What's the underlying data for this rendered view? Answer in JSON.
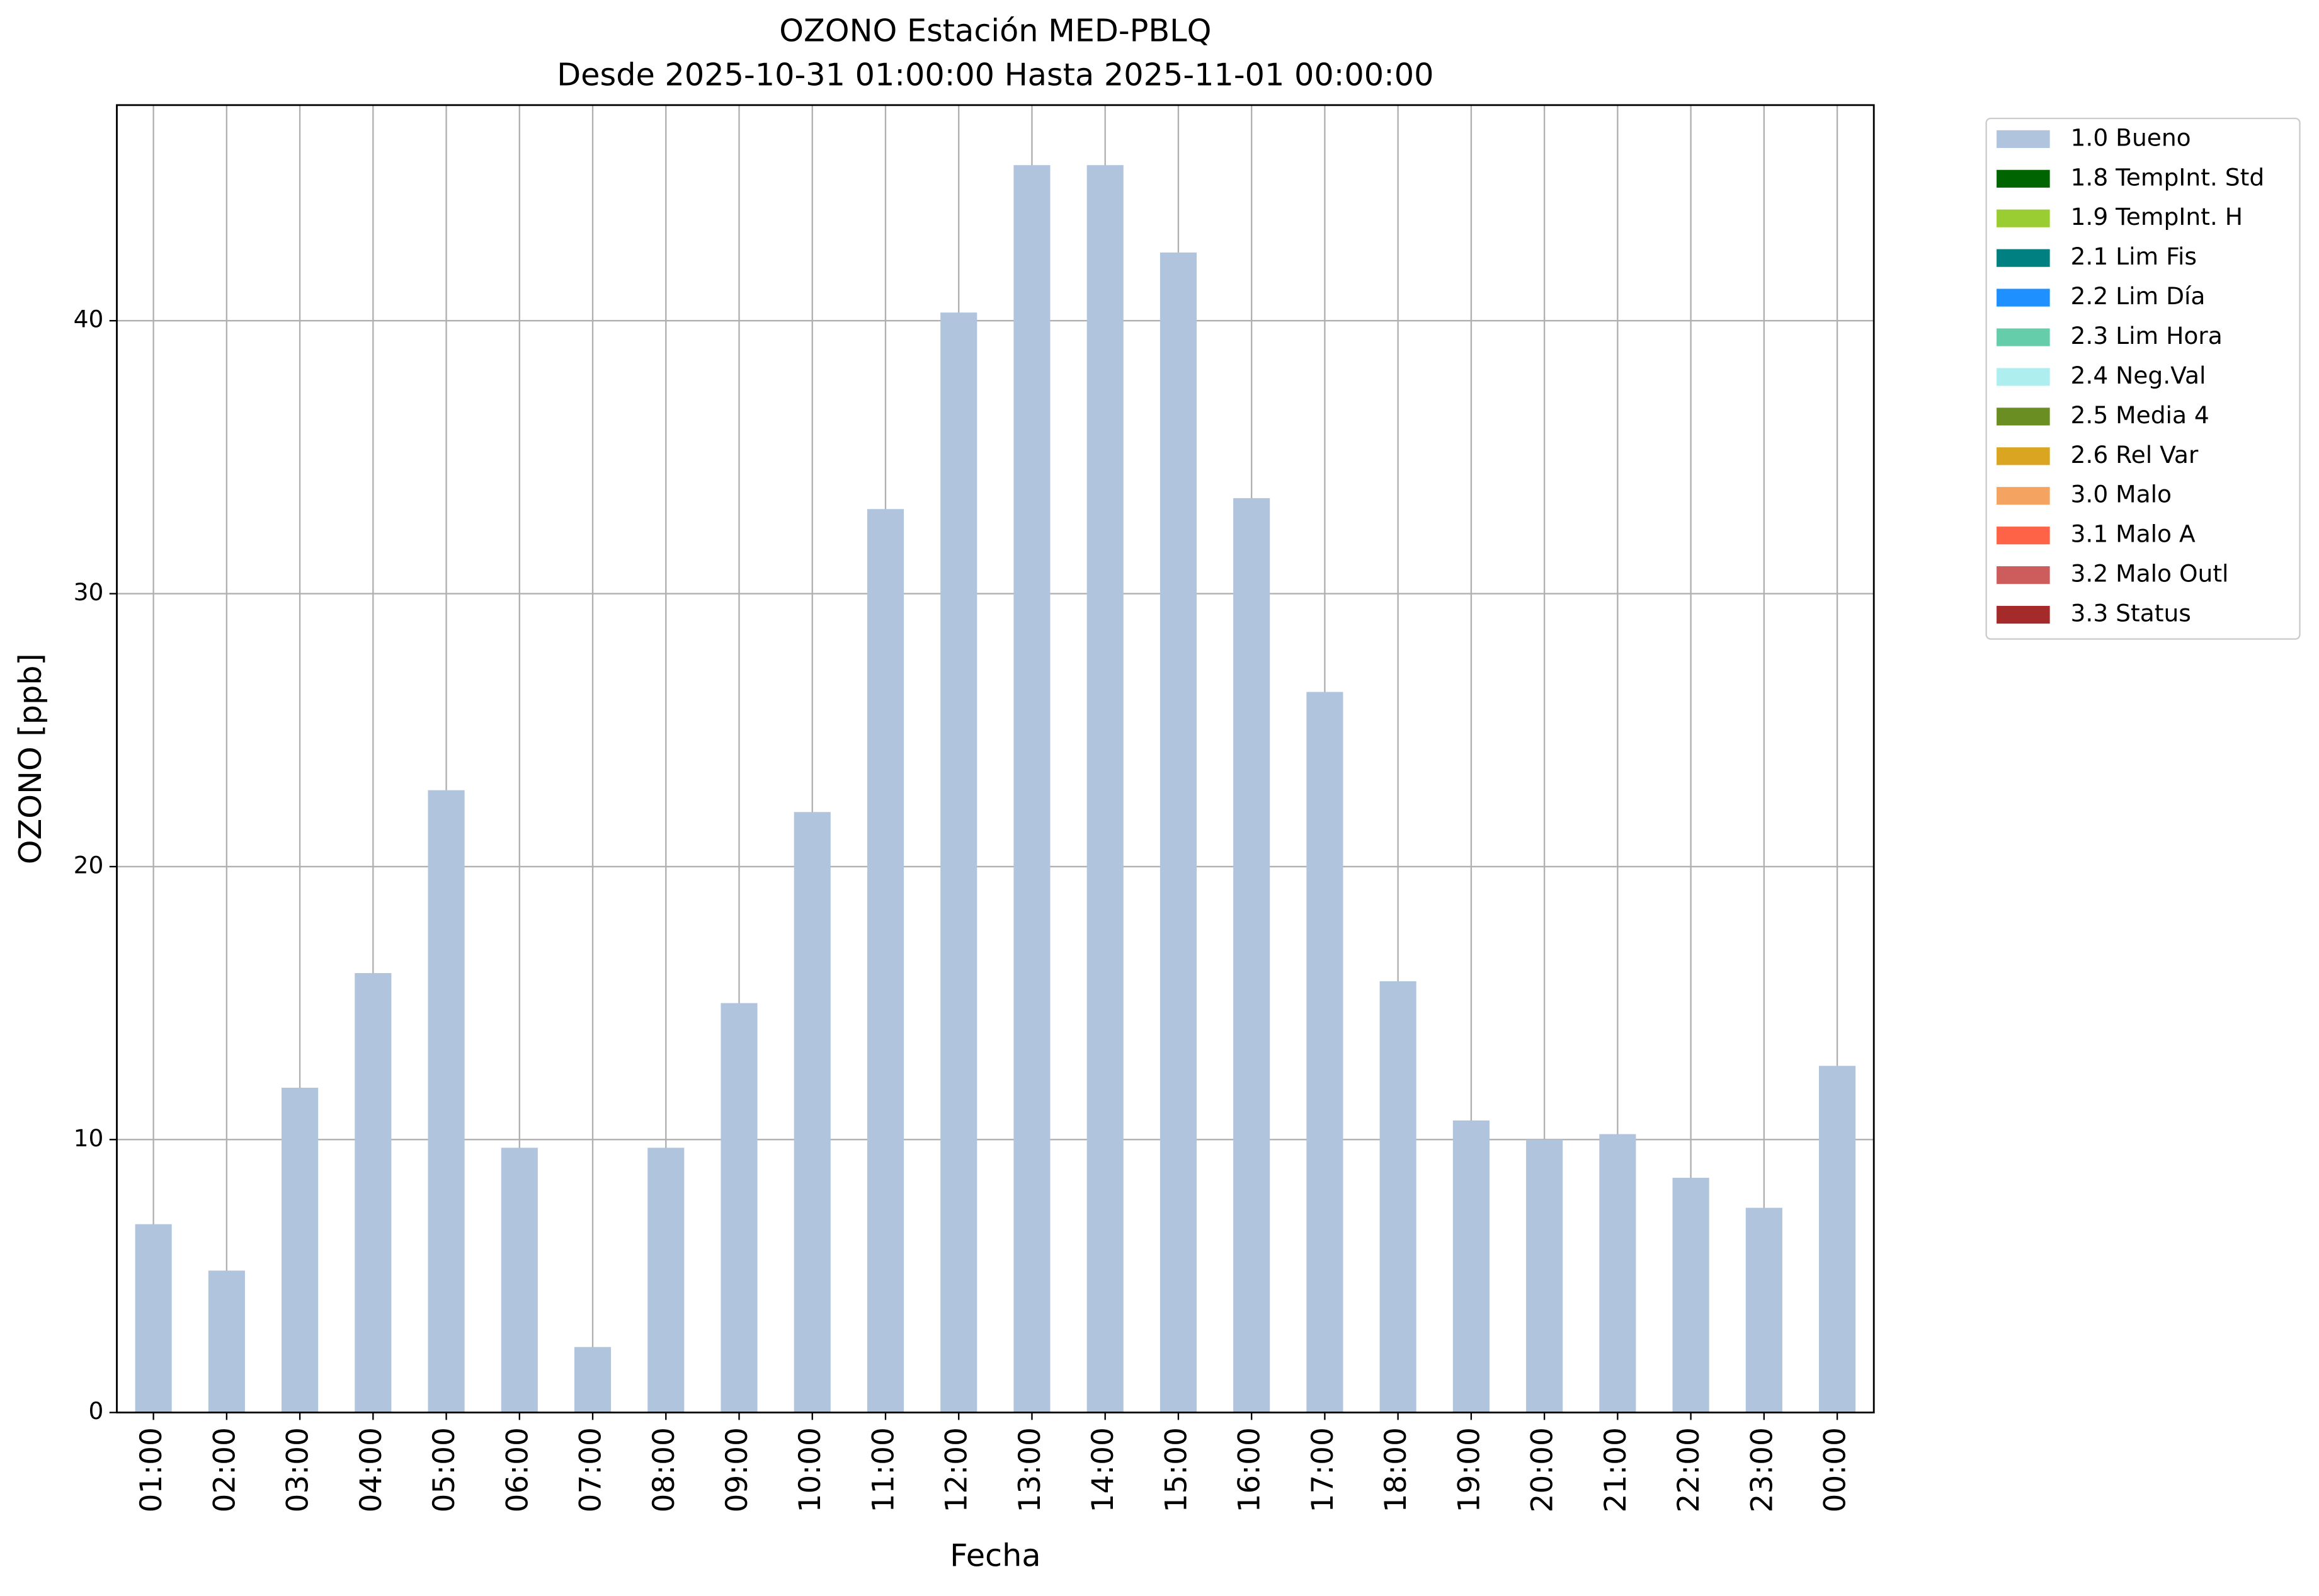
{
  "chart_data": {
    "type": "bar",
    "title": "OZONO Estación MED-PBLQ",
    "subtitle": "Desde 2025-10-31 01:00:00 Hasta 2025-11-01 00:00:00",
    "x_label": "Fecha",
    "y_label": "OZONO [ppb]",
    "categories": [
      "01:00",
      "02:00",
      "03:00",
      "04:00",
      "05:00",
      "06:00",
      "07:00",
      "08:00",
      "09:00",
      "10:00",
      "11:00",
      "12:00",
      "13:00",
      "14:00",
      "15:00",
      "16:00",
      "17:00",
      "18:00",
      "19:00",
      "20:00",
      "21:00",
      "22:00",
      "23:00",
      "00:00"
    ],
    "series": [
      {
        "name": "1.0 Bueno",
        "color": "#b0c4de",
        "values": [
          6.9,
          5.2,
          11.9,
          16.1,
          22.8,
          9.7,
          2.4,
          9.7,
          15.0,
          22.0,
          33.1,
          40.3,
          45.7,
          45.7,
          42.5,
          33.5,
          26.4,
          15.8,
          10.7,
          10.0,
          10.2,
          8.6,
          7.5,
          12.7
        ]
      },
      {
        "name": "1.8 TempInt. Std",
        "color": "#006400"
      },
      {
        "name": "1.9 TempInt. H",
        "color": "#9acd32"
      },
      {
        "name": "2.1 Lim Fis",
        "color": "#008080"
      },
      {
        "name": "2.2 Lim Día",
        "color": "#1e90ff"
      },
      {
        "name": "2.3 Lim Hora",
        "color": "#66cdaa"
      },
      {
        "name": "2.4 Neg.Val",
        "color": "#afeeee"
      },
      {
        "name": "2.5 Media 4",
        "color": "#6b8e23"
      },
      {
        "name": "2.6 Rel Var",
        "color": "#daa520"
      },
      {
        "name": "3.0 Malo",
        "color": "#f4a460"
      },
      {
        "name": "3.1 Malo A",
        "color": "#ff6347"
      },
      {
        "name": "3.2 Malo Outl",
        "color": "#cd5c5c"
      },
      {
        "name": "3.3 Status",
        "color": "#a52a2a"
      }
    ],
    "ylim": [
      0,
      47.9
    ],
    "yticks": [
      0,
      10,
      20,
      30,
      40
    ],
    "grid": true,
    "legend": "outside-upper-right"
  }
}
